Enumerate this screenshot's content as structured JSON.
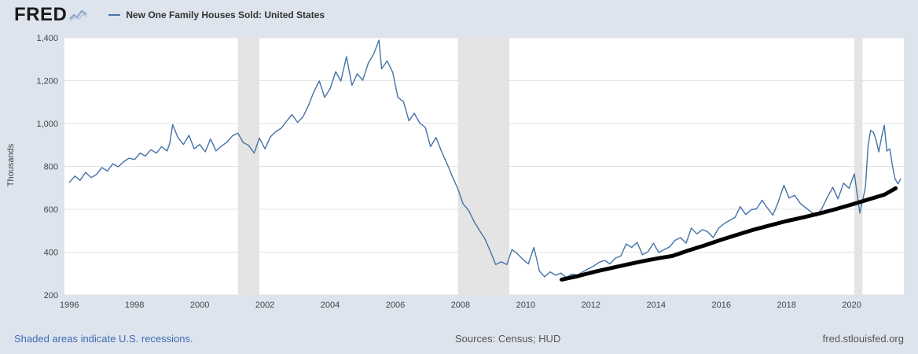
{
  "header": {
    "logo": "FRED",
    "legend": {
      "dash": "—",
      "label": "New One Family Houses Sold: United States"
    }
  },
  "footer": {
    "recession_note": "Shaded areas indicate U.S. recessions.",
    "sources": "Sources: Census; HUD",
    "site": "fred.stlouisfed.org"
  },
  "colors": {
    "page_bg": "#dee4ee",
    "plot_bg": "#ffffff",
    "line": "#4572a7",
    "annotation": "#000000",
    "recession_band": "#e4e4e4",
    "gridline": "#e3e3e3",
    "tick_text": "#444444",
    "link": "#3d6bb3",
    "footer_text": "#555555"
  },
  "chart_data": {
    "type": "line",
    "title": "New One Family Houses Sold: United States",
    "xlabel": "",
    "ylabel": "Thousands",
    "xlim": [
      1995.85,
      2021.6
    ],
    "ylim": [
      200,
      1400
    ],
    "grid": "horizontal",
    "legend_position": "top-left-header",
    "y_ticks": [
      {
        "v": 200,
        "label": "200"
      },
      {
        "v": 400,
        "label": "400"
      },
      {
        "v": 600,
        "label": "600"
      },
      {
        "v": 800,
        "label": "800"
      },
      {
        "v": 1000,
        "label": "1,000"
      },
      {
        "v": 1200,
        "label": "1,200"
      },
      {
        "v": 1400,
        "label": "1,400"
      }
    ],
    "x_ticks": [
      {
        "v": 1996,
        "label": "1996"
      },
      {
        "v": 1998,
        "label": "1998"
      },
      {
        "v": 2000,
        "label": "2000"
      },
      {
        "v": 2002,
        "label": "2002"
      },
      {
        "v": 2004,
        "label": "2004"
      },
      {
        "v": 2006,
        "label": "2006"
      },
      {
        "v": 2008,
        "label": "2008"
      },
      {
        "v": 2010,
        "label": "2010"
      },
      {
        "v": 2012,
        "label": "2012"
      },
      {
        "v": 2014,
        "label": "2014"
      },
      {
        "v": 2016,
        "label": "2016"
      },
      {
        "v": 2018,
        "label": "2018"
      },
      {
        "v": 2020,
        "label": "2020"
      }
    ],
    "recessions": [
      [
        2001.17,
        2001.83
      ],
      [
        2007.92,
        2009.5
      ],
      [
        2020.08,
        2020.33
      ]
    ],
    "series": [
      {
        "name": "New One Family Houses Sold: United States (thousands, monthly)",
        "color": "#4572a7",
        "width": 1.4,
        "points": [
          [
            1996.0,
            725
          ],
          [
            1996.17,
            755
          ],
          [
            1996.33,
            735
          ],
          [
            1996.5,
            772
          ],
          [
            1996.67,
            748
          ],
          [
            1996.83,
            762
          ],
          [
            1997.0,
            795
          ],
          [
            1997.17,
            778
          ],
          [
            1997.33,
            812
          ],
          [
            1997.5,
            798
          ],
          [
            1997.67,
            822
          ],
          [
            1997.83,
            838
          ],
          [
            1998.0,
            832
          ],
          [
            1998.17,
            862
          ],
          [
            1998.33,
            848
          ],
          [
            1998.5,
            878
          ],
          [
            1998.67,
            862
          ],
          [
            1998.83,
            892
          ],
          [
            1999.0,
            872
          ],
          [
            1999.08,
            908
          ],
          [
            1999.17,
            995
          ],
          [
            1999.33,
            935
          ],
          [
            1999.5,
            902
          ],
          [
            1999.67,
            945
          ],
          [
            1999.83,
            882
          ],
          [
            2000.0,
            902
          ],
          [
            2000.17,
            868
          ],
          [
            2000.33,
            928
          ],
          [
            2000.5,
            872
          ],
          [
            2000.67,
            895
          ],
          [
            2000.83,
            912
          ],
          [
            2001.0,
            942
          ],
          [
            2001.17,
            955
          ],
          [
            2001.33,
            912
          ],
          [
            2001.5,
            898
          ],
          [
            2001.67,
            862
          ],
          [
            2001.83,
            932
          ],
          [
            2002.0,
            882
          ],
          [
            2002.17,
            938
          ],
          [
            2002.33,
            962
          ],
          [
            2002.5,
            978
          ],
          [
            2002.67,
            1012
          ],
          [
            2002.83,
            1042
          ],
          [
            2003.0,
            1005
          ],
          [
            2003.17,
            1032
          ],
          [
            2003.33,
            1082
          ],
          [
            2003.5,
            1148
          ],
          [
            2003.67,
            1198
          ],
          [
            2003.83,
            1122
          ],
          [
            2004.0,
            1162
          ],
          [
            2004.17,
            1242
          ],
          [
            2004.33,
            1198
          ],
          [
            2004.5,
            1312
          ],
          [
            2004.67,
            1178
          ],
          [
            2004.83,
            1232
          ],
          [
            2005.0,
            1202
          ],
          [
            2005.17,
            1282
          ],
          [
            2005.33,
            1322
          ],
          [
            2005.5,
            1389
          ],
          [
            2005.58,
            1255
          ],
          [
            2005.75,
            1292
          ],
          [
            2005.92,
            1238
          ],
          [
            2006.08,
            1122
          ],
          [
            2006.25,
            1102
          ],
          [
            2006.42,
            1012
          ],
          [
            2006.58,
            1048
          ],
          [
            2006.75,
            1002
          ],
          [
            2006.92,
            982
          ],
          [
            2007.08,
            892
          ],
          [
            2007.25,
            935
          ],
          [
            2007.42,
            868
          ],
          [
            2007.58,
            815
          ],
          [
            2007.75,
            752
          ],
          [
            2007.92,
            695
          ],
          [
            2008.08,
            625
          ],
          [
            2008.25,
            595
          ],
          [
            2008.42,
            542
          ],
          [
            2008.58,
            502
          ],
          [
            2008.75,
            462
          ],
          [
            2008.92,
            402
          ],
          [
            2009.08,
            342
          ],
          [
            2009.25,
            355
          ],
          [
            2009.42,
            342
          ],
          [
            2009.58,
            412
          ],
          [
            2009.75,
            392
          ],
          [
            2009.92,
            365
          ],
          [
            2010.08,
            345
          ],
          [
            2010.25,
            422
          ],
          [
            2010.42,
            312
          ],
          [
            2010.58,
            285
          ],
          [
            2010.75,
            308
          ],
          [
            2010.92,
            292
          ],
          [
            2011.08,
            302
          ],
          [
            2011.25,
            282
          ],
          [
            2011.42,
            298
          ],
          [
            2011.58,
            292
          ],
          [
            2011.75,
            308
          ],
          [
            2011.92,
            322
          ],
          [
            2012.08,
            335
          ],
          [
            2012.25,
            352
          ],
          [
            2012.42,
            362
          ],
          [
            2012.58,
            345
          ],
          [
            2012.75,
            372
          ],
          [
            2012.92,
            382
          ],
          [
            2013.08,
            438
          ],
          [
            2013.25,
            422
          ],
          [
            2013.42,
            445
          ],
          [
            2013.58,
            388
          ],
          [
            2013.75,
            402
          ],
          [
            2013.92,
            442
          ],
          [
            2014.08,
            398
          ],
          [
            2014.25,
            412
          ],
          [
            2014.42,
            425
          ],
          [
            2014.58,
            455
          ],
          [
            2014.75,
            468
          ],
          [
            2014.92,
            442
          ],
          [
            2015.08,
            512
          ],
          [
            2015.25,
            485
          ],
          [
            2015.42,
            505
          ],
          [
            2015.58,
            495
          ],
          [
            2015.75,
            468
          ],
          [
            2015.92,
            512
          ],
          [
            2016.08,
            532
          ],
          [
            2016.25,
            548
          ],
          [
            2016.42,
            562
          ],
          [
            2016.58,
            612
          ],
          [
            2016.75,
            575
          ],
          [
            2016.92,
            598
          ],
          [
            2017.08,
            602
          ],
          [
            2017.25,
            642
          ],
          [
            2017.42,
            605
          ],
          [
            2017.58,
            572
          ],
          [
            2017.75,
            635
          ],
          [
            2017.92,
            712
          ],
          [
            2018.08,
            652
          ],
          [
            2018.25,
            665
          ],
          [
            2018.42,
            628
          ],
          [
            2018.58,
            608
          ],
          [
            2018.75,
            588
          ],
          [
            2018.92,
            568
          ],
          [
            2019.08,
            602
          ],
          [
            2019.25,
            655
          ],
          [
            2019.42,
            702
          ],
          [
            2019.58,
            648
          ],
          [
            2019.75,
            722
          ],
          [
            2019.92,
            698
          ],
          [
            2020.08,
            765
          ],
          [
            2020.25,
            582
          ],
          [
            2020.42,
            702
          ],
          [
            2020.5,
            892
          ],
          [
            2020.58,
            968
          ],
          [
            2020.67,
            958
          ],
          [
            2020.75,
            922
          ],
          [
            2020.83,
            868
          ],
          [
            2020.92,
            938
          ],
          [
            2021.0,
            992
          ],
          [
            2021.08,
            872
          ],
          [
            2021.17,
            882
          ],
          [
            2021.25,
            802
          ],
          [
            2021.33,
            742
          ],
          [
            2021.42,
            718
          ],
          [
            2021.5,
            742
          ]
        ]
      },
      {
        "name": "Hand-drawn black trend annotation (2011–2021)",
        "color": "#000000",
        "width": 5,
        "points": [
          [
            2011.1,
            272
          ],
          [
            2011.6,
            288
          ],
          [
            2012.1,
            308
          ],
          [
            2012.6,
            325
          ],
          [
            2013.1,
            342
          ],
          [
            2013.6,
            358
          ],
          [
            2014.1,
            372
          ],
          [
            2014.5,
            382
          ],
          [
            2015.0,
            408
          ],
          [
            2015.5,
            432
          ],
          [
            2016.0,
            458
          ],
          [
            2016.5,
            482
          ],
          [
            2017.0,
            505
          ],
          [
            2017.5,
            525
          ],
          [
            2018.0,
            545
          ],
          [
            2018.5,
            562
          ],
          [
            2019.0,
            580
          ],
          [
            2019.5,
            600
          ],
          [
            2020.0,
            622
          ],
          [
            2020.5,
            645
          ],
          [
            2021.0,
            668
          ],
          [
            2021.35,
            698
          ]
        ]
      }
    ]
  }
}
